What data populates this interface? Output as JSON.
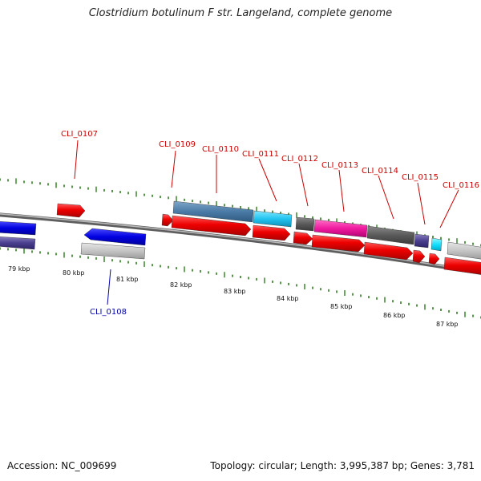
{
  "title": "Clostridium botulinum F str. Langeland, complete genome",
  "accession_line": "Accession: NC_009699",
  "topology_line": "Topology: circular; Length: 3,995,387 bp; Genes: 3,781",
  "colors": {
    "label_red": "#cc0000",
    "label_blue": "#0000aa",
    "tick": "#2e7d1e",
    "backbone": "#7a7a7a"
  },
  "kbp_labels": [
    "79 kbp",
    "80 kbp",
    "81 kbp",
    "82 kbp",
    "83 kbp",
    "84 kbp",
    "85 kbp",
    "86 kbp",
    "87 kbp"
  ],
  "gene_labels": [
    {
      "text": "CLI_0107",
      "color": "#cc0000"
    },
    {
      "text": "CLI_0108",
      "color": "#0000aa"
    },
    {
      "text": "CLI_0109",
      "color": "#cc0000"
    },
    {
      "text": "CLI_0110",
      "color": "#cc0000"
    },
    {
      "text": "CLI_0111",
      "color": "#cc0000"
    },
    {
      "text": "CLI_0112",
      "color": "#cc0000"
    },
    {
      "text": "CLI_0113",
      "color": "#cc0000"
    },
    {
      "text": "CLI_0114",
      "color": "#cc0000"
    },
    {
      "text": "CLI_0115",
      "color": "#cc0000"
    },
    {
      "text": "CLI_0116",
      "color": "#cc0000"
    }
  ]
}
